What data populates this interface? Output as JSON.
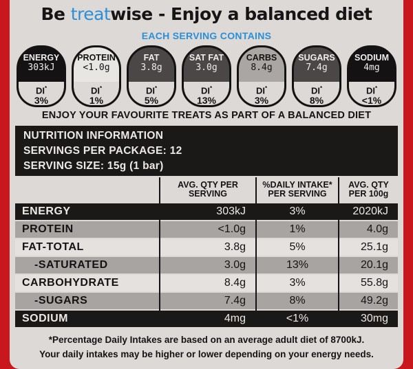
{
  "headline": {
    "pre": "Be ",
    "accent": "treat",
    "post": "wise - Enjoy a balanced diet"
  },
  "subhead": "EACH SERVING CONTAINS",
  "badges": [
    {
      "name": "ENERGY",
      "value": "303kJ",
      "di_label": "DI",
      "di_mark": "*",
      "percent": "3%",
      "shade": "black"
    },
    {
      "name": "PROTEIN",
      "value": "<1.0g",
      "di_label": "DI",
      "di_mark": "*",
      "percent": "1%",
      "shade": "light"
    },
    {
      "name": "FAT",
      "value": "3.8g",
      "di_label": "DI",
      "di_mark": "*",
      "percent": "5%",
      "shade": "dark"
    },
    {
      "name": "SAT FAT",
      "value": "3.0g",
      "di_label": "DI",
      "di_mark": "*",
      "percent": "13%",
      "shade": "dark"
    },
    {
      "name": "CARBS",
      "value": "8.4g",
      "di_label": "DI",
      "di_mark": "*",
      "percent": "3%",
      "shade": "mid"
    },
    {
      "name": "SUGARS",
      "value": "7.4g",
      "di_label": "DI",
      "di_mark": "*",
      "percent": "8%",
      "shade": "dark"
    },
    {
      "name": "SODIUM",
      "value": "4mg",
      "di_label": "DI",
      "di_mark": "*",
      "percent": "<1%",
      "shade": "black"
    }
  ],
  "treat_line": "ENJOY YOUR FAVOURITE TREATS AS PART OF A BALANCED DIET",
  "nutrition_info": {
    "title": "NUTRITION INFORMATION",
    "servings_per_package": "SERVINGS PER PACKAGE: 12",
    "serving_size": "SERVING SIZE: 15g (1 bar)"
  },
  "table": {
    "headers": {
      "per_serving": "AVG. QTY PER SERVING",
      "daily_intake": "%DAILY INTAKE* PER SERVING",
      "per_100g": "AVG. QTY PER 100g"
    },
    "rows": [
      {
        "name": "ENERGY",
        "per_serving": "303kJ",
        "daily": "3%",
        "per_100g": "2020kJ",
        "shade": "black"
      },
      {
        "name": "PROTEIN",
        "per_serving": "<1.0g",
        "daily": "1%",
        "per_100g": "4.0g",
        "shade": "mid"
      },
      {
        "name": "FAT-TOTAL",
        "per_serving": "3.8g",
        "daily": "5%",
        "per_100g": "25.1g",
        "shade": "light"
      },
      {
        "name": "-SATURATED",
        "per_serving": "3.0g",
        "daily": "13%",
        "per_100g": "20.1g",
        "shade": "mid"
      },
      {
        "name": "CARBOHYDRATE",
        "per_serving": "8.4g",
        "daily": "3%",
        "per_100g": "55.8g",
        "shade": "light"
      },
      {
        "name": "-SUGARS",
        "per_serving": "7.4g",
        "daily": "8%",
        "per_100g": "49.2g",
        "shade": "mid"
      },
      {
        "name": "SODIUM",
        "per_serving": "4mg",
        "daily": "<1%",
        "per_100g": "30mg",
        "shade": "black"
      }
    ]
  },
  "footnote": {
    "line1": "*Percentage Daily Intakes are based on an average adult diet of 8700kJ.",
    "line2": "Your daily intakes may be higher or lower depending on your energy needs."
  },
  "colors": {
    "packaging_red": "#c8181d",
    "treat_blue": "#2a8fd8",
    "label_bg": "#ddd9d6",
    "ink": "#141212"
  }
}
